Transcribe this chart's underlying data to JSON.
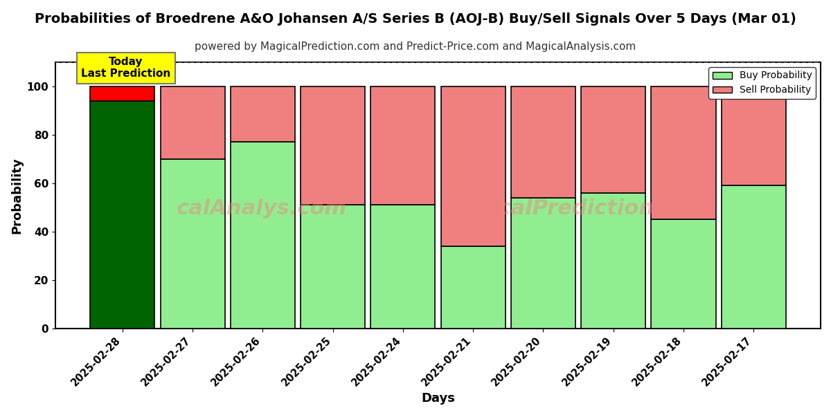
{
  "title": "Probabilities of Broedrene A&O Johansen A/S Series B (AOJ-B) Buy/Sell Signals Over 5 Days (Mar 01)",
  "subtitle": "powered by MagicalPrediction.com and Predict-Price.com and MagicalAnalysis.com",
  "xlabel": "Days",
  "ylabel": "Probability",
  "categories": [
    "2025-02-28",
    "2025-02-27",
    "2025-02-26",
    "2025-02-25",
    "2025-02-24",
    "2025-02-21",
    "2025-02-20",
    "2025-02-19",
    "2025-02-18",
    "2025-02-17"
  ],
  "buy_values": [
    94,
    70,
    77,
    51,
    51,
    34,
    54,
    56,
    45,
    59
  ],
  "sell_values": [
    6,
    30,
    23,
    49,
    49,
    66,
    46,
    44,
    55,
    41
  ],
  "buy_colors": [
    "#006400",
    "#90EE90",
    "#90EE90",
    "#90EE90",
    "#90EE90",
    "#90EE90",
    "#90EE90",
    "#90EE90",
    "#90EE90",
    "#90EE90"
  ],
  "sell_colors": [
    "#FF0000",
    "#F08080",
    "#F08080",
    "#F08080",
    "#F08080",
    "#F08080",
    "#F08080",
    "#F08080",
    "#F08080",
    "#F08080"
  ],
  "today_label": "Today\nLast Prediction",
  "today_bg": "#FFFF00",
  "legend_buy_color": "#90EE90",
  "legend_sell_color": "#F08080",
  "legend_buy_label": "Buy Probability",
  "legend_sell_label": "Sell Probability",
  "ylim": [
    0,
    110
  ],
  "yticks": [
    0,
    20,
    40,
    60,
    80,
    100
  ],
  "dashed_line_y": 110,
  "bar_edge_color": "#000000",
  "bar_linewidth": 1.2,
  "grid_color": "#ffffff",
  "bg_color": "#ffffff",
  "watermark1": "calAnalys.com",
  "watermark2": "MagicalPrediction.com",
  "title_fontsize": 14,
  "subtitle_fontsize": 11,
  "axis_label_fontsize": 13
}
